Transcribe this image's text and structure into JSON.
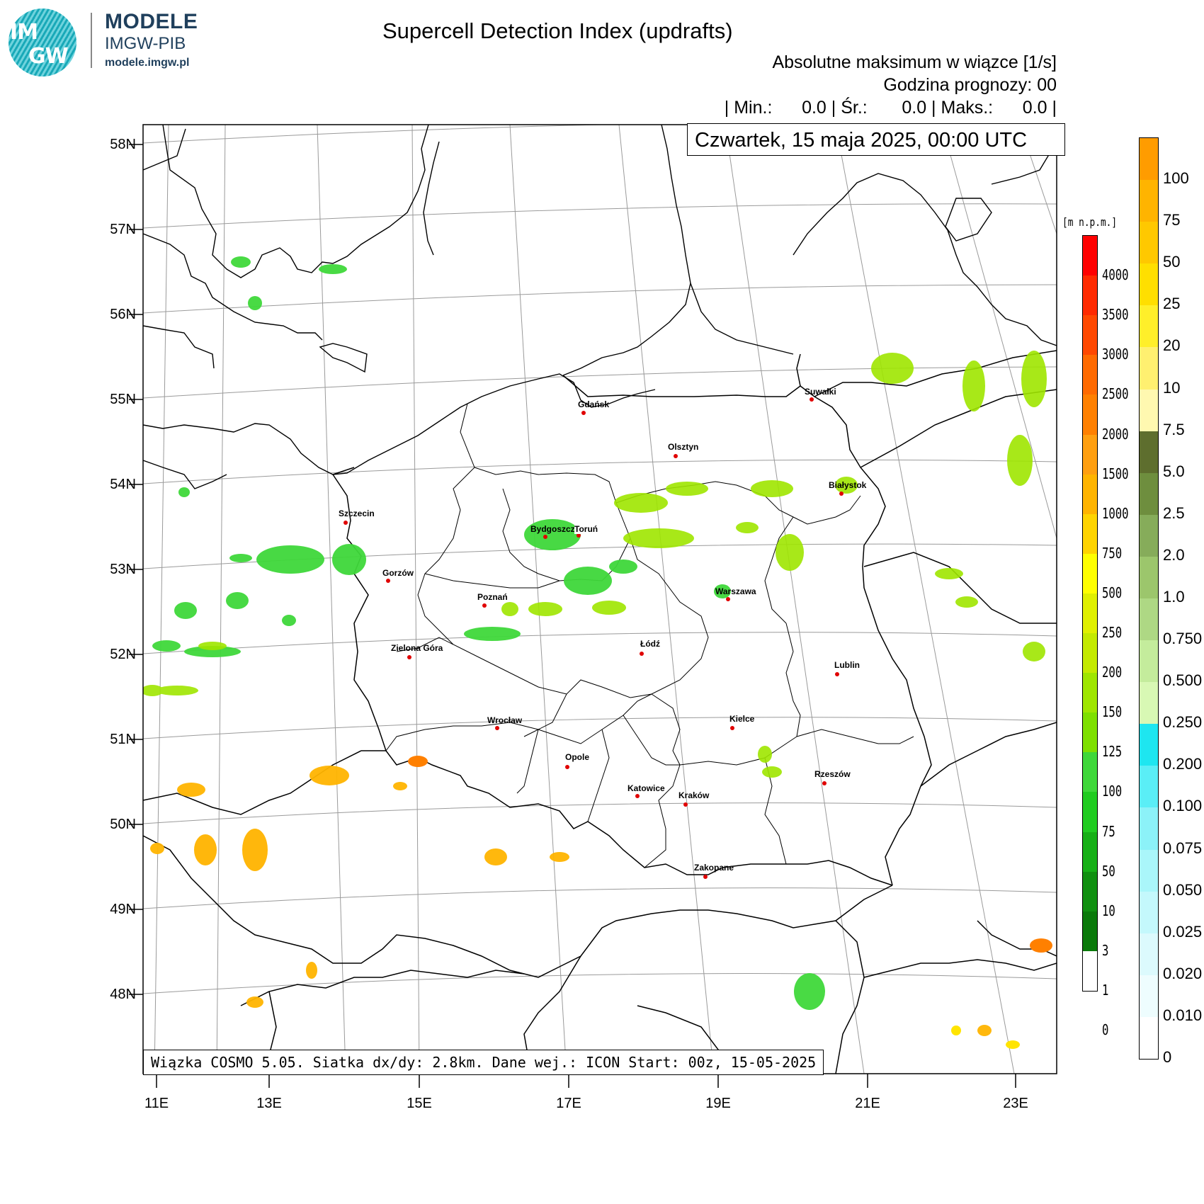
{
  "logo": {
    "line1": "IM",
    "line2": "GW"
  },
  "brand": {
    "name": "MODELE",
    "org": "IMGW-PIB",
    "url": "modele.imgw.pl"
  },
  "header": {
    "title": "Supercell Detection Index (updrafts)",
    "subtitle": "Absolutne maksimum w wiązce [1/s]",
    "forecast_hour": "Godzina prognozy: 00",
    "stats": "| Min.:      0.0 | Śr.:       0.0 | Maks.:      0.0 |",
    "date": "Czwartek, 15 maja 2025, 00:00 UTC"
  },
  "footer": "Wiązka COSMO 5.05. Siatka dx/dy: 2.8km. Dane wej.: ICON Start: 00z, 15-05-2025",
  "map": {
    "lat_labels": [
      "58N",
      "57N",
      "56N",
      "55N",
      "54N",
      "53N",
      "52N",
      "51N",
      "50N",
      "49N",
      "48N"
    ],
    "lon_labels": [
      "11E",
      "13E",
      "15E",
      "17E",
      "19E",
      "21E",
      "23E"
    ],
    "cities": [
      {
        "name": "Gdańsk"
      },
      {
        "name": "Suwałki"
      },
      {
        "name": "Olsztyn"
      },
      {
        "name": "Białystok"
      },
      {
        "name": "Szczecin"
      },
      {
        "name": "Bydgoszcz"
      },
      {
        "name": "Toruń"
      },
      {
        "name": "Gorzów"
      },
      {
        "name": "Poznań"
      },
      {
        "name": "Warszawa"
      },
      {
        "name": "Zielona Góra"
      },
      {
        "name": "Łódź"
      },
      {
        "name": "Lublin"
      },
      {
        "name": "Wrocław"
      },
      {
        "name": "Kielce"
      },
      {
        "name": "Opole"
      },
      {
        "name": "Rzeszów"
      },
      {
        "name": "Katowice"
      },
      {
        "name": "Kraków"
      },
      {
        "name": "Zakopane"
      }
    ]
  },
  "elevation_scale": {
    "title": "[m n.p.m.]",
    "labels": [
      "4000",
      "3500",
      "3000",
      "2500",
      "2000",
      "1500",
      "1000",
      "750",
      "500",
      "250",
      "200",
      "150",
      "125",
      "100",
      "75",
      "50",
      "10",
      "3",
      "1",
      "0"
    ],
    "colors": [
      "#ff0000",
      "#ff2a00",
      "#ff4800",
      "#ff6a00",
      "#ff8000",
      "#ff9f10",
      "#ffb400",
      "#ffd400",
      "#ffff00",
      "#e0f000",
      "#c4ea00",
      "#9fe600",
      "#7ee000",
      "#3fd83a",
      "#20cc20",
      "#16b016",
      "#109010",
      "#0a7a0a",
      "#ffffff"
    ]
  },
  "sdi_scale": {
    "labels": [
      "100",
      "75",
      "50",
      "25",
      "20",
      "10",
      "7.5",
      "5.0",
      "2.5",
      "2.0",
      "1.0",
      "0.750",
      "0.500",
      "0.250",
      "0.200",
      "0.100",
      "0.075",
      "0.050",
      "0.025",
      "0.020",
      "0.010",
      "0"
    ],
    "colors": [
      "#ff9c00",
      "#ffb400",
      "#ffc800",
      "#ffdf00",
      "#ffef2a",
      "#fff070",
      "#fff8b0",
      "#5e6e2e",
      "#6e8e3e",
      "#86ac5a",
      "#9cc66c",
      "#aed884",
      "#c4ec9c",
      "#d8f8b4",
      "#1ee6f0",
      "#5aeef6",
      "#8cf2f8",
      "#aaf6fa",
      "#c4f8fc",
      "#dcfafd",
      "#eefdfe",
      "#ffffff"
    ]
  }
}
